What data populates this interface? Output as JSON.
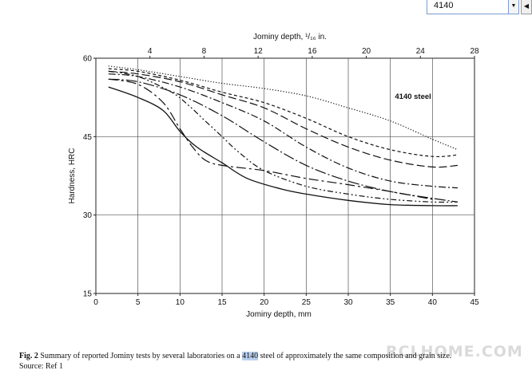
{
  "search_box": {
    "value": "4140",
    "dropdown_glyph": "▼",
    "nav_glyph": "◀"
  },
  "chart_data": {
    "type": "line",
    "title": "",
    "annotation": "4140 steel",
    "xlabel": "Jominy depth, mm",
    "x2label": "Jominy depth, ¹/₁₆ in.",
    "ylabel": "Hardness, HRC",
    "xlim": [
      0,
      45
    ],
    "x2lim": [
      0,
      28
    ],
    "ylim": [
      15,
      60
    ],
    "xticks": [
      0,
      5,
      10,
      15,
      20,
      25,
      30,
      35,
      40,
      45
    ],
    "x2ticks": [
      4,
      8,
      12,
      16,
      20,
      24,
      28
    ],
    "yticks": [
      15,
      30,
      45,
      60
    ],
    "grid": true,
    "legend": "none",
    "series": [
      {
        "style": "dotted",
        "x": [
          1.5,
          5,
          10,
          15,
          20,
          25,
          30,
          35,
          40,
          43
        ],
        "y": [
          58.5,
          57.8,
          56.5,
          55.2,
          54.2,
          52.8,
          50.5,
          48,
          44.5,
          42.5
        ]
      },
      {
        "style": "short-dash",
        "x": [
          1.5,
          5,
          10,
          15,
          20,
          25,
          30,
          35,
          40,
          43
        ],
        "y": [
          58,
          57.5,
          55.8,
          53.5,
          51.5,
          48.5,
          45,
          42.5,
          41.2,
          41.5
        ]
      },
      {
        "style": "long-dash",
        "x": [
          1.5,
          5,
          10,
          15,
          20,
          25,
          30,
          35,
          40,
          43
        ],
        "y": [
          57.5,
          57,
          55.5,
          53,
          50.5,
          46.5,
          43,
          40.5,
          39.2,
          39.5
        ]
      },
      {
        "style": "dash-dot",
        "x": [
          1.5,
          5,
          10,
          15,
          20,
          25,
          30,
          35,
          40,
          43
        ],
        "y": [
          57,
          56.5,
          54.5,
          51.5,
          48,
          43,
          39,
          36.5,
          35.5,
          35.2
        ]
      },
      {
        "style": "long-dash-dot",
        "x": [
          1.5,
          5,
          10,
          15,
          20,
          25,
          30,
          35,
          40,
          43
        ],
        "y": [
          56,
          55.5,
          53,
          49,
          44,
          39.5,
          36.5,
          34.5,
          33.2,
          32.5
        ]
      },
      {
        "style": "dash-dot-dot",
        "x": [
          1.5,
          5,
          9,
          11,
          13,
          15,
          17,
          20,
          25,
          30,
          35,
          40,
          43
        ],
        "y": [
          57.5,
          56.5,
          53.5,
          51,
          48,
          45,
          42,
          38.5,
          35.5,
          34,
          33,
          32.5,
          32.5
        ]
      },
      {
        "style": "dash-dot-long",
        "x": [
          1.5,
          5,
          8,
          10,
          11.5,
          13,
          15,
          20,
          25,
          30,
          35,
          40
        ],
        "y": [
          56,
          55,
          51.5,
          46.5,
          43,
          40.5,
          39.5,
          38.5,
          37,
          35.8,
          34.5,
          33
        ]
      },
      {
        "style": "solid",
        "x": [
          1.5,
          5,
          8,
          10,
          12,
          15,
          18,
          22,
          25,
          30,
          35,
          40,
          43
        ],
        "y": [
          54.5,
          52.5,
          50,
          46,
          43,
          40,
          37,
          35,
          34,
          32.8,
          32,
          31.8,
          31.8
        ]
      }
    ]
  },
  "caption": {
    "fig_label": "Fig. 2",
    "text_before": " Summary of reported Jominy tests by several laboratories on a ",
    "highlight": "4140",
    "text_after": " steel of approximately the same composition and grain size.",
    "source": "Source: Ref 1"
  },
  "watermark": "RCLHOME.COM"
}
